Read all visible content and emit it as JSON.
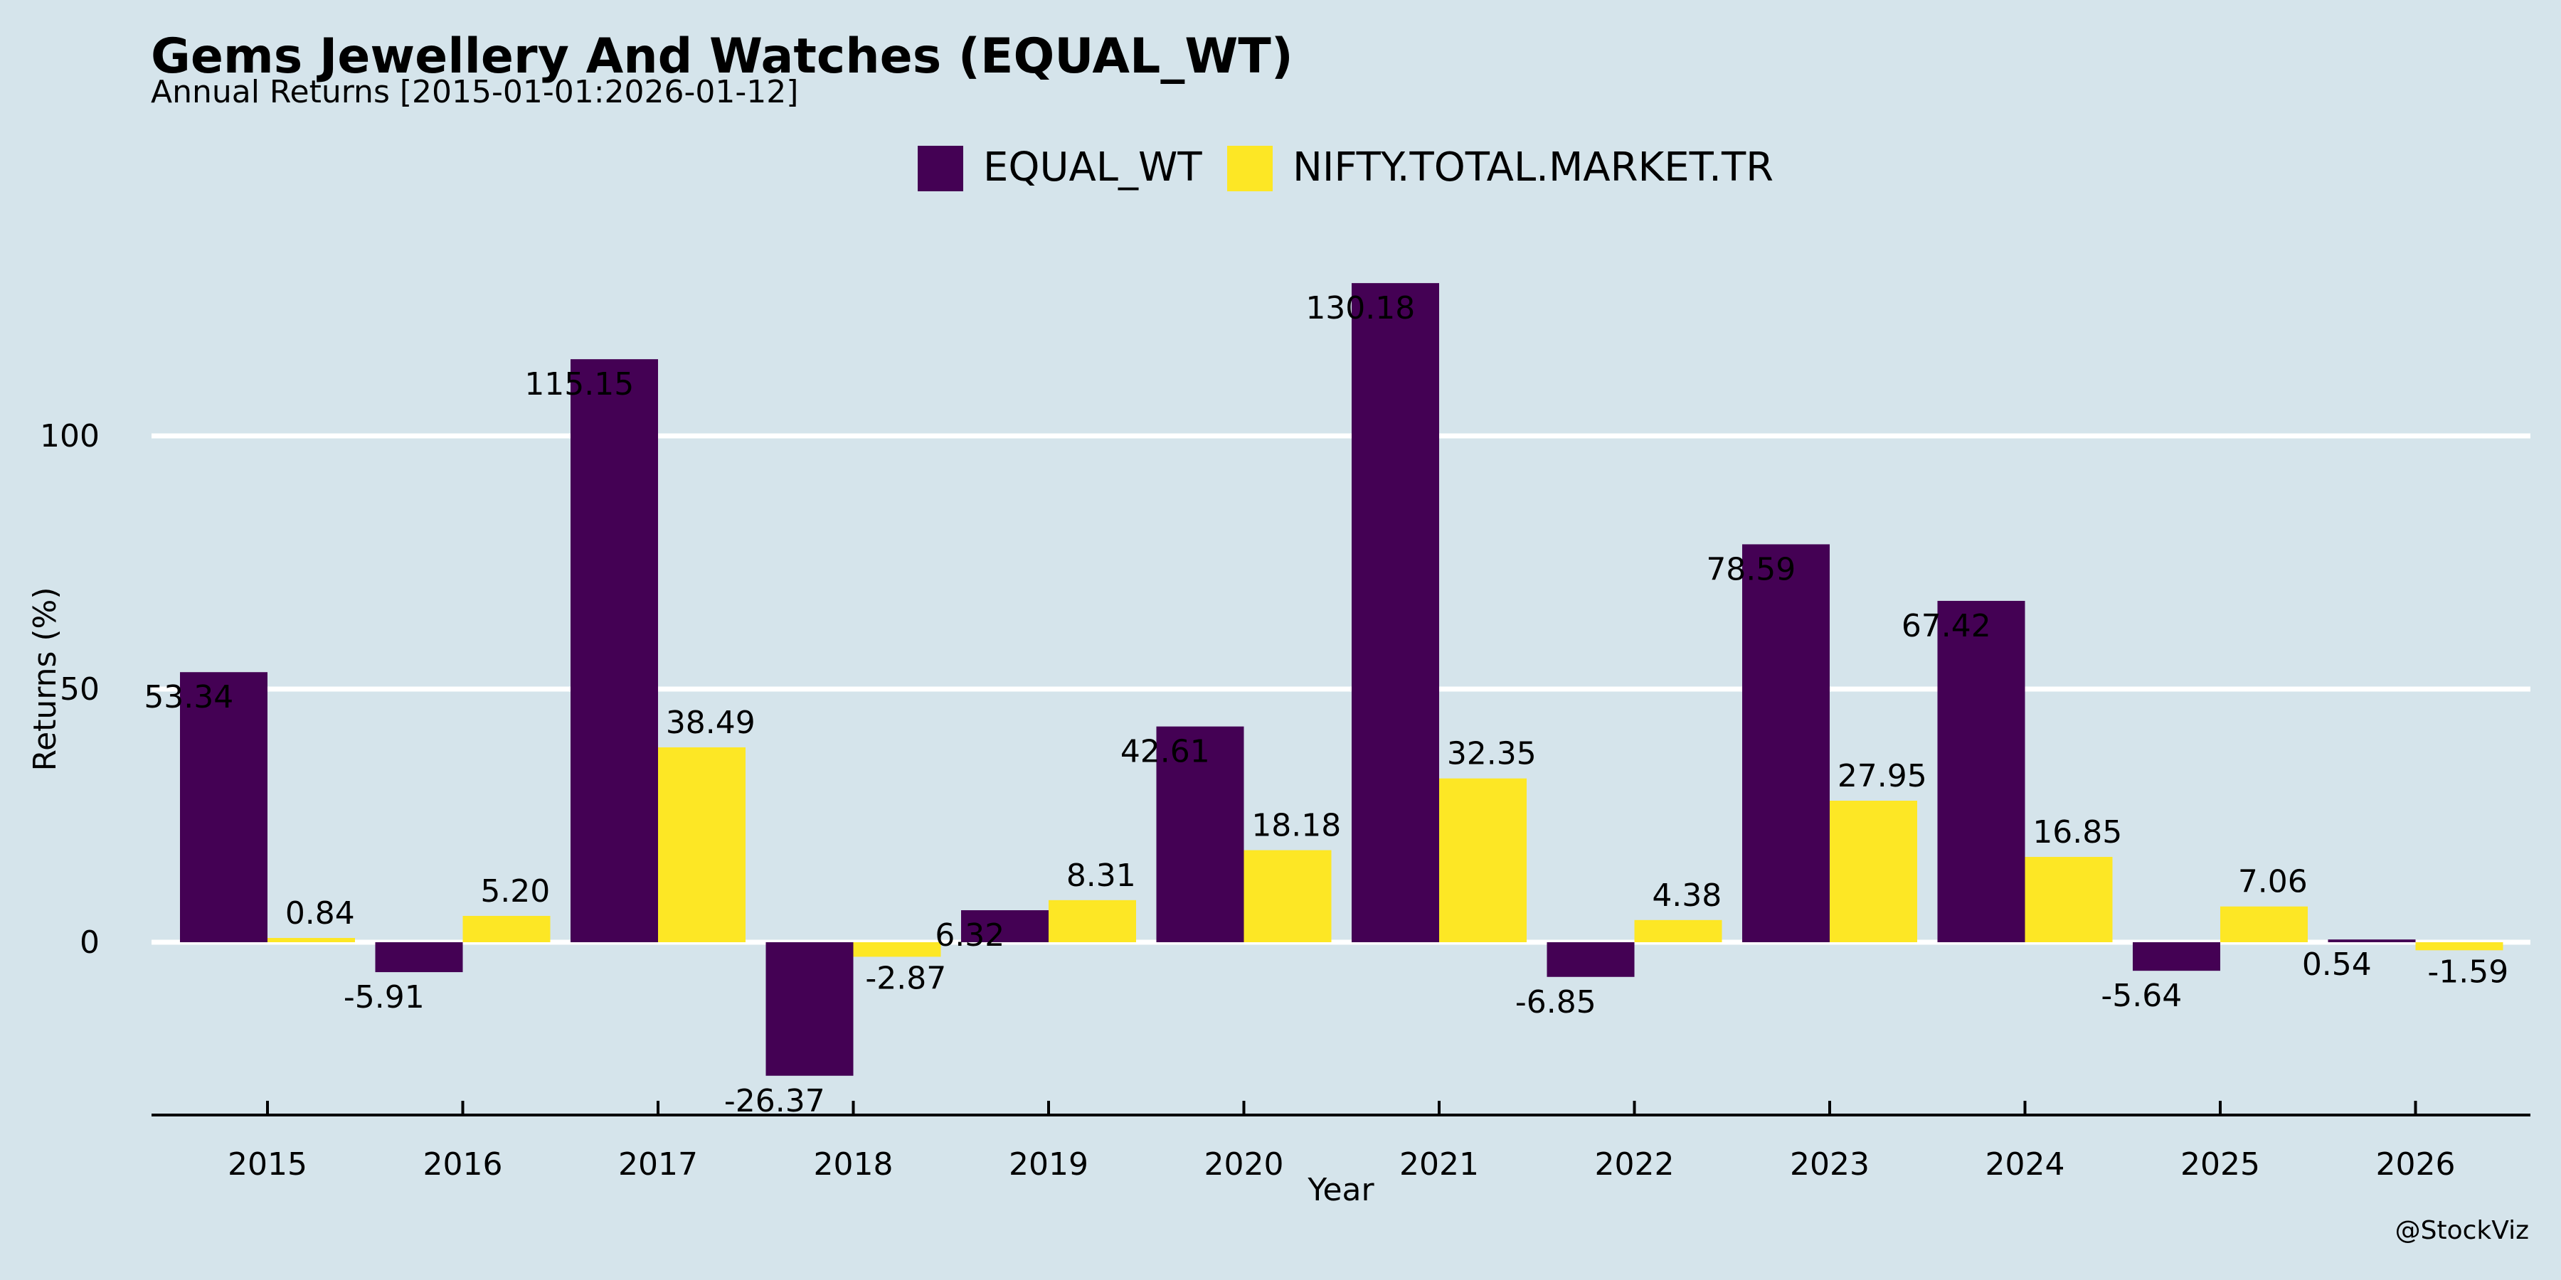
{
  "header": {
    "title": "Gems Jewellery And Watches (EQUAL_WT)",
    "subtitle": "Annual Returns [2015-01-01:2026-01-12]"
  },
  "watermark": "@StockViz",
  "chart_data": {
    "type": "bar",
    "title": "Gems Jewellery And Watches (EQUAL_WT)",
    "subtitle": "Annual Returns [2015-01-01:2026-01-12]",
    "xlabel": "Year",
    "ylabel": "Returns (%)",
    "categories": [
      "2015",
      "2016",
      "2017",
      "2018",
      "2019",
      "2020",
      "2021",
      "2022",
      "2023",
      "2024",
      "2025",
      "2026"
    ],
    "series": [
      {
        "name": "EQUAL_WT",
        "color": "#440154",
        "values": [
          53.34,
          -5.91,
          115.15,
          -26.37,
          6.32,
          42.61,
          130.18,
          -6.85,
          78.59,
          67.42,
          -5.64,
          0.54
        ]
      },
      {
        "name": "NIFTY.TOTAL.MARKET.TR",
        "color": "#fde725",
        "values": [
          0.84,
          5.2,
          38.49,
          -2.87,
          8.31,
          18.18,
          32.35,
          4.38,
          27.95,
          16.85,
          7.06,
          -1.59
        ]
      }
    ],
    "yticks": [
      0,
      50,
      100
    ],
    "ylim": [
      -34,
      140
    ],
    "grid": "horizontal",
    "legend": "top-center"
  }
}
